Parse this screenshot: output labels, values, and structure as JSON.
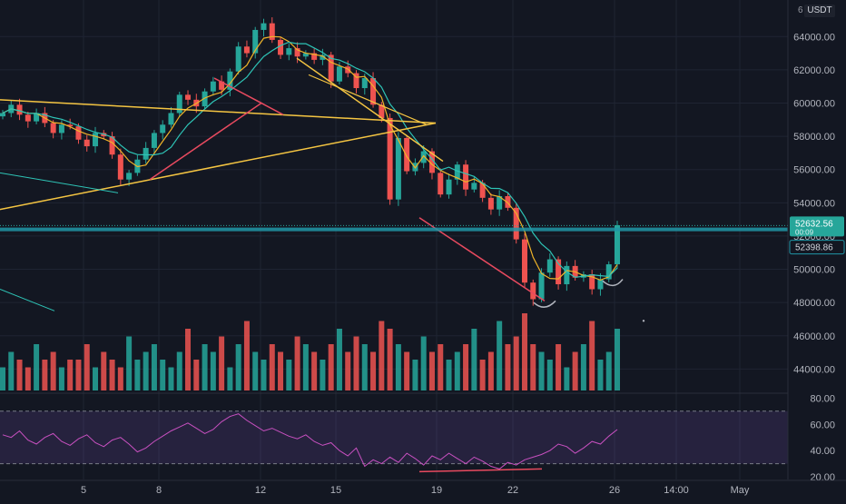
{
  "chart_data": [
    {
      "type": "candlestick",
      "pair_badge": "USDT",
      "price_axis_ticks": [
        "64000.00",
        "62000.00",
        "60000.00",
        "58000.00",
        "56000.00",
        "54000.00",
        "52000.00",
        "50000.00",
        "48000.00",
        "46000.00",
        "44000.00"
      ],
      "price_axis_values": [
        64000,
        62000,
        60000,
        58000,
        56000,
        54000,
        52000,
        50000,
        48000,
        46000,
        44000
      ],
      "ylim": [
        42600,
        66200
      ],
      "x_ticks": [
        "5",
        "8",
        "12",
        "15",
        "19",
        "22",
        "26",
        "14:00",
        "May"
      ],
      "price_labels": {
        "last_price": "52632.56",
        "last_price_value": 52632.56,
        "last_price_sub": "00:09",
        "level": "52398.86",
        "level_value": 52398.86
      },
      "colors": {
        "up": "#26a69a",
        "down": "#ef5350",
        "trendline": "#f5c542",
        "channel": "#e84a5f",
        "ma_fast": "#f0b429",
        "ma_slow": "#2ec4b6",
        "level_line": "#2196a6"
      },
      "trend": {
        "path_prices": [
          59400,
          59900,
          59300,
          58900,
          59400,
          58800,
          58200,
          58700,
          58600,
          57800,
          57400,
          58200,
          58000,
          56900,
          55400,
          55800,
          56600,
          57300,
          58200,
          58700,
          59400,
          60500,
          60200,
          59800,
          60700,
          61300,
          60800,
          61900,
          63400,
          63000,
          64400,
          64800,
          63800,
          62900,
          63300,
          62800,
          63000,
          62600,
          62900,
          61300,
          62200,
          61800,
          60900,
          61500,
          59900,
          59100,
          54200,
          57900,
          55900,
          56400,
          57100,
          55800,
          54500,
          55400,
          56300,
          54800,
          55200,
          54300,
          53600,
          54400,
          53700,
          51800,
          49200,
          48200,
          49800,
          50600,
          49100,
          50200,
          49500,
          49700,
          48800,
          49400,
          50300,
          52650
        ]
      },
      "volume": {
        "pattern": [
          3,
          5,
          4,
          3,
          6,
          4,
          5,
          3,
          4,
          4,
          6,
          3,
          5,
          4,
          3,
          7,
          4,
          5,
          6,
          4,
          3,
          5,
          8,
          4,
          6,
          5,
          7,
          3,
          6,
          9,
          5,
          4,
          6,
          5,
          4,
          7,
          6,
          5,
          4,
          6,
          8,
          5,
          7,
          6,
          5,
          9,
          8,
          6,
          5,
          4,
          7,
          5,
          6,
          4,
          5,
          6,
          8,
          4,
          5,
          9,
          6,
          7,
          10,
          6,
          5,
          4,
          6,
          3,
          5,
          6,
          9,
          4,
          5,
          8
        ],
        "peak_multiplier": 1.0
      },
      "rsi": {
        "tick_labels": [
          "80.00",
          "60.00",
          "40.00",
          "20.00"
        ],
        "tick_values": [
          80,
          60,
          40,
          20
        ],
        "upper_band": 70,
        "lower_band": 30,
        "ylim": [
          18,
          83
        ],
        "values": [
          52,
          50,
          55,
          48,
          45,
          50,
          53,
          47,
          44,
          49,
          52,
          46,
          43,
          48,
          50,
          45,
          39,
          42,
          47,
          51,
          55,
          58,
          61,
          57,
          53,
          56,
          62,
          66,
          68,
          63,
          59,
          55,
          57,
          54,
          51,
          49,
          52,
          47,
          44,
          46,
          40,
          36,
          42,
          28,
          33,
          30,
          35,
          31,
          38,
          34,
          29,
          36,
          33,
          38,
          34,
          30,
          35,
          32,
          28,
          26,
          31,
          29,
          33,
          35,
          37,
          40,
          45,
          43,
          38,
          42,
          47,
          45,
          51,
          56
        ]
      }
    }
  ]
}
